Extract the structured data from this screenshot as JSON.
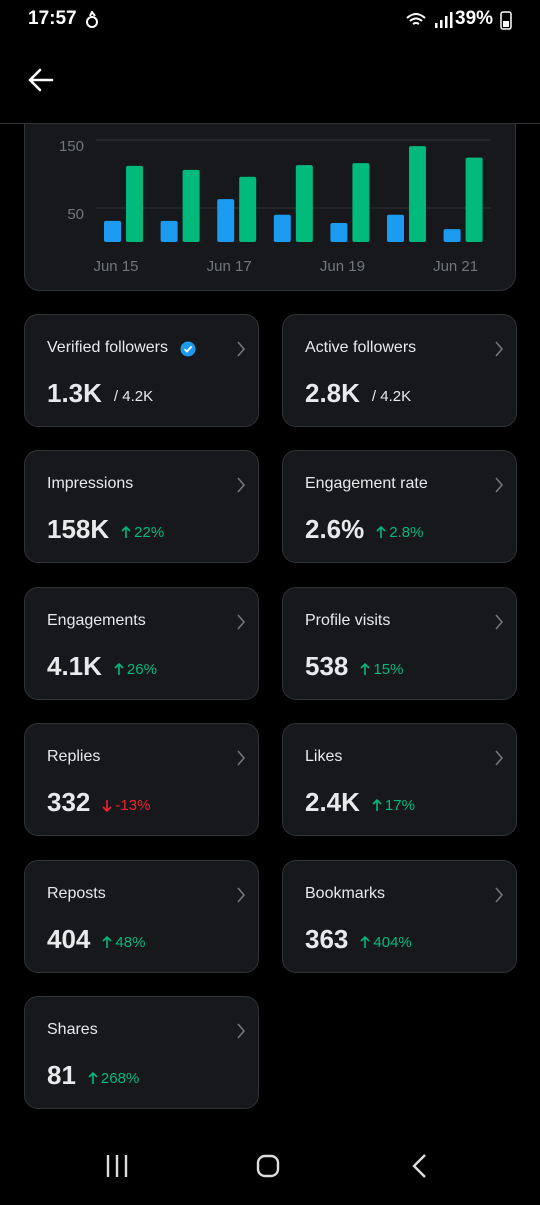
{
  "status_bar": {
    "time": "17:57",
    "battery": "39%"
  },
  "chart_data": {
    "type": "bar",
    "categories": [
      "Jun 15",
      null,
      "Jun 17",
      null,
      "Jun 19",
      null,
      "Jun 21"
    ],
    "series": [
      {
        "color": "#1d9bf0",
        "values": [
          31,
          31,
          63,
          40,
          28,
          40,
          19
        ]
      },
      {
        "color": "#00ba7c",
        "values": [
          112,
          106,
          96,
          113,
          116,
          141,
          124
        ]
      }
    ],
    "ylim": [
      0,
      165
    ],
    "yticks": [
      50,
      150
    ],
    "grid": true
  },
  "cards": [
    {
      "label": "Verified followers",
      "value": "1.3K",
      "total": "/ 4.2K",
      "verified": true
    },
    {
      "label": "Active followers",
      "value": "2.8K",
      "total": "/ 4.2K"
    },
    {
      "label": "Impressions",
      "value": "158K",
      "change": "22%",
      "trend": "up"
    },
    {
      "label": "Engagement rate",
      "value": "2.6%",
      "change": "2.8%",
      "trend": "up"
    },
    {
      "label": "Engagements",
      "value": "4.1K",
      "change": "26%",
      "trend": "up"
    },
    {
      "label": "Profile visits",
      "value": "538",
      "change": "15%",
      "trend": "up"
    },
    {
      "label": "Replies",
      "value": "332",
      "change": "-13%",
      "trend": "down"
    },
    {
      "label": "Likes",
      "value": "2.4K",
      "change": "17%",
      "trend": "up"
    },
    {
      "label": "Reposts",
      "value": "404",
      "change": "48%",
      "trend": "up"
    },
    {
      "label": "Bookmarks",
      "value": "363",
      "change": "404%",
      "trend": "up"
    },
    {
      "label": "Shares",
      "value": "81",
      "change": "268%",
      "trend": "up"
    }
  ]
}
